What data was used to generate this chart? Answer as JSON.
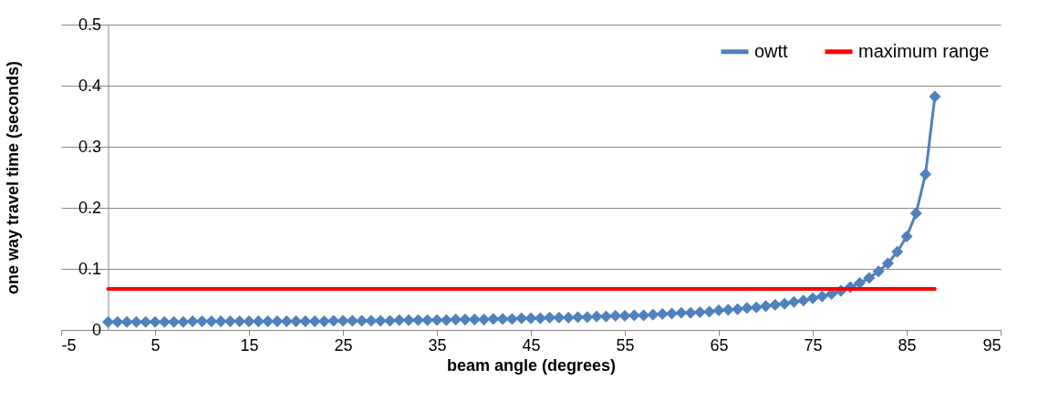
{
  "chart_data": {
    "type": "line",
    "xlabel": "beam angle (degrees)",
    "ylabel": "one way travel time (seconds)",
    "xlim": [
      -5,
      95
    ],
    "xticks": [
      -5,
      5,
      15,
      25,
      35,
      45,
      55,
      65,
      75,
      85,
      95
    ],
    "ylim": [
      0,
      0.5
    ],
    "yticks": [
      0,
      0.1,
      0.2,
      0.3,
      0.4,
      0.5
    ],
    "grid": "y",
    "legend": "top right",
    "series": [
      {
        "name": "owtt",
        "color": "#4f81bd",
        "marker": "diamond",
        "x": [
          0,
          1,
          2,
          3,
          4,
          5,
          6,
          7,
          8,
          9,
          10,
          11,
          12,
          13,
          14,
          15,
          16,
          17,
          18,
          19,
          20,
          21,
          22,
          23,
          24,
          25,
          26,
          27,
          28,
          29,
          30,
          31,
          32,
          33,
          34,
          35,
          36,
          37,
          38,
          39,
          40,
          41,
          42,
          43,
          44,
          45,
          46,
          47,
          48,
          49,
          50,
          51,
          52,
          53,
          54,
          55,
          56,
          57,
          58,
          59,
          60,
          61,
          62,
          63,
          64,
          65,
          66,
          67,
          68,
          69,
          70,
          71,
          72,
          73,
          74,
          75,
          76,
          77,
          78,
          79,
          80,
          81,
          82,
          83,
          84,
          85,
          86,
          87,
          88
        ],
        "values": [
          0.013,
          0.013,
          0.013,
          0.013,
          0.013,
          0.013,
          0.013,
          0.013,
          0.013,
          0.014,
          0.014,
          0.014,
          0.014,
          0.014,
          0.014,
          0.014,
          0.014,
          0.014,
          0.014,
          0.014,
          0.014,
          0.014,
          0.014,
          0.014,
          0.015,
          0.015,
          0.015,
          0.015,
          0.015,
          0.015,
          0.015,
          0.016,
          0.016,
          0.016,
          0.016,
          0.016,
          0.016,
          0.017,
          0.017,
          0.017,
          0.017,
          0.018,
          0.018,
          0.018,
          0.019,
          0.019,
          0.019,
          0.02,
          0.02,
          0.02,
          0.021,
          0.021,
          0.022,
          0.022,
          0.023,
          0.023,
          0.024,
          0.024,
          0.025,
          0.026,
          0.027,
          0.028,
          0.028,
          0.029,
          0.03,
          0.032,
          0.033,
          0.034,
          0.036,
          0.037,
          0.039,
          0.041,
          0.043,
          0.046,
          0.048,
          0.052,
          0.055,
          0.059,
          0.064,
          0.07,
          0.077,
          0.085,
          0.096,
          0.109,
          0.128,
          0.153,
          0.191,
          0.255,
          0.382
        ]
      },
      {
        "name": "maximum range",
        "color": "#ff0000",
        "marker": "none",
        "x": [
          0,
          88
        ],
        "values": [
          0.067,
          0.067
        ]
      }
    ]
  }
}
